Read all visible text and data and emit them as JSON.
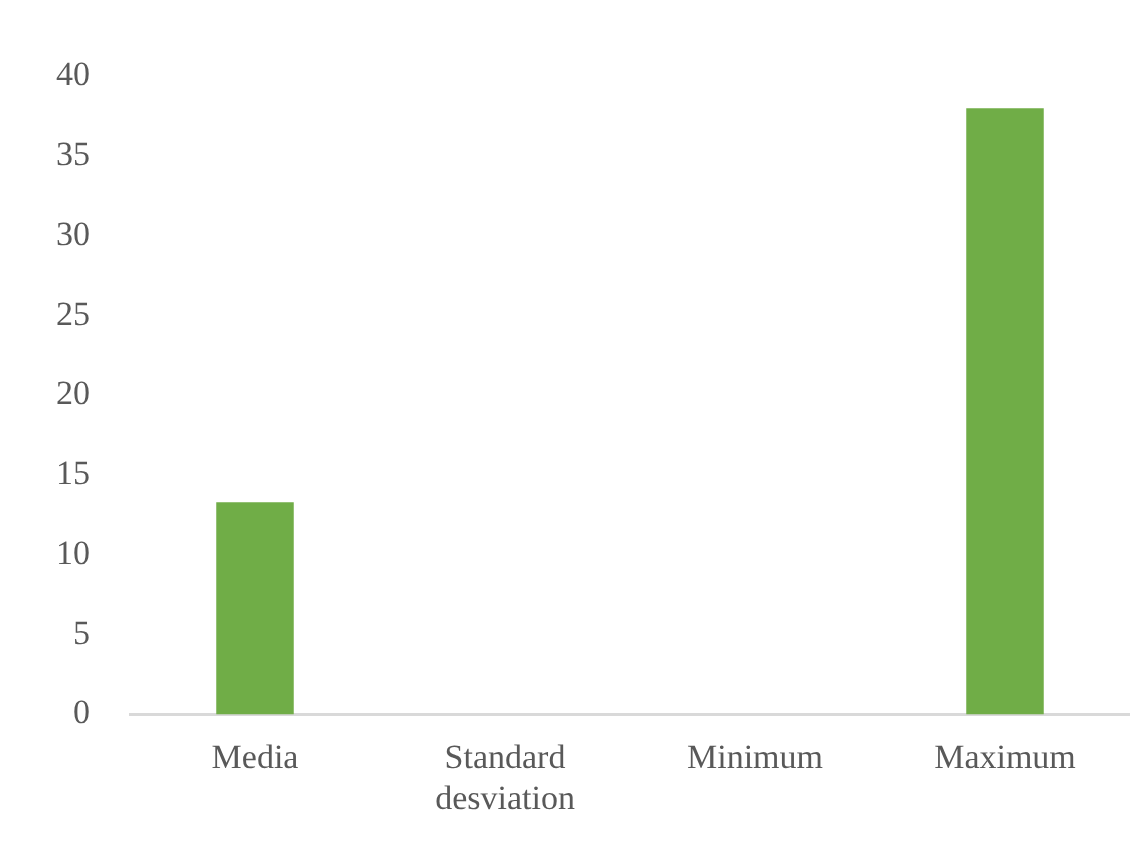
{
  "chart_data": {
    "type": "bar",
    "categories": [
      "Media",
      "Standard desviation",
      "Minimum",
      "Maximum"
    ],
    "values": [
      13.3,
      0,
      0,
      38.0
    ],
    "color": "#70ad47",
    "ylim": [
      0,
      40
    ],
    "yticks": [
      0,
      5,
      10,
      15,
      20,
      25,
      30,
      35,
      40
    ],
    "grid": false,
    "legend": false
  }
}
